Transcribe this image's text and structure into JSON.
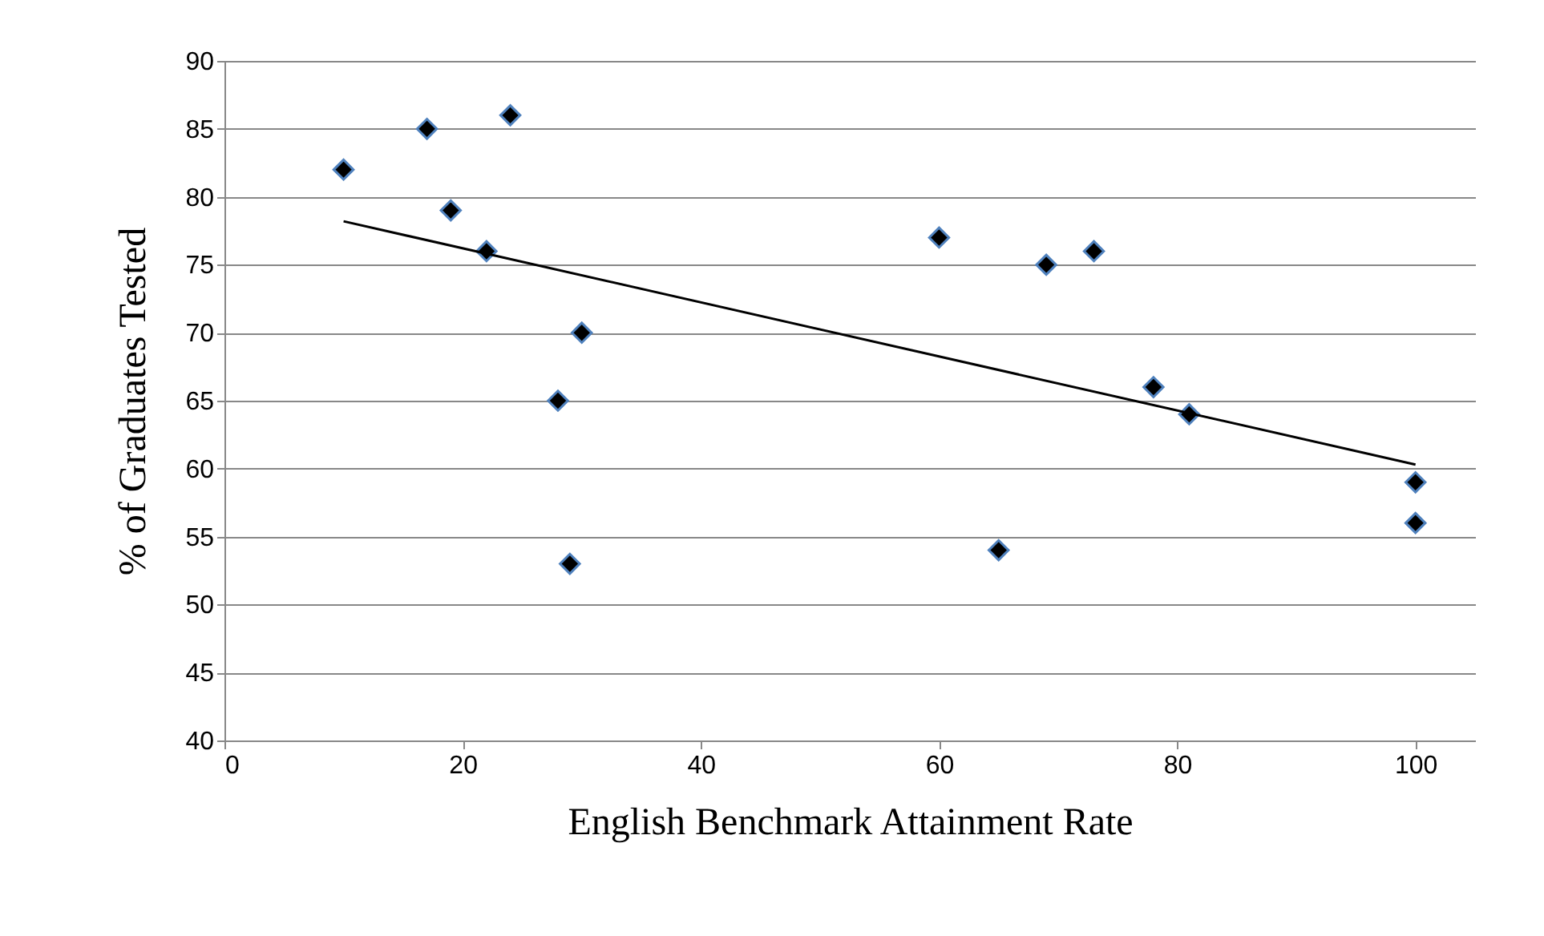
{
  "chart_data": {
    "type": "scatter",
    "xlabel": "English Benchmark Attainment Rate",
    "ylabel": "% of  Graduates Tested",
    "xlim": [
      0,
      105
    ],
    "xticks": [
      0,
      20,
      40,
      60,
      80,
      100
    ],
    "ylim": [
      40,
      90
    ],
    "yticks": [
      40,
      45,
      50,
      55,
      60,
      65,
      70,
      75,
      80,
      85,
      90
    ],
    "grid": "y",
    "marker": "diamond",
    "series": [
      {
        "color": "#000000",
        "x": [
          10,
          17,
          24,
          19,
          22,
          30,
          28,
          29,
          60,
          65,
          69,
          73,
          78,
          81,
          100,
          100
        ],
        "values": [
          82,
          85,
          86,
          79,
          76,
          70,
          65,
          53,
          77,
          54,
          75,
          76,
          66,
          64,
          59,
          56
        ]
      },
      {
        "type": "line",
        "marker": "none",
        "color": "#000000",
        "x": [
          10,
          100
        ],
        "values": [
          78.2,
          60.3
        ]
      }
    ]
  }
}
